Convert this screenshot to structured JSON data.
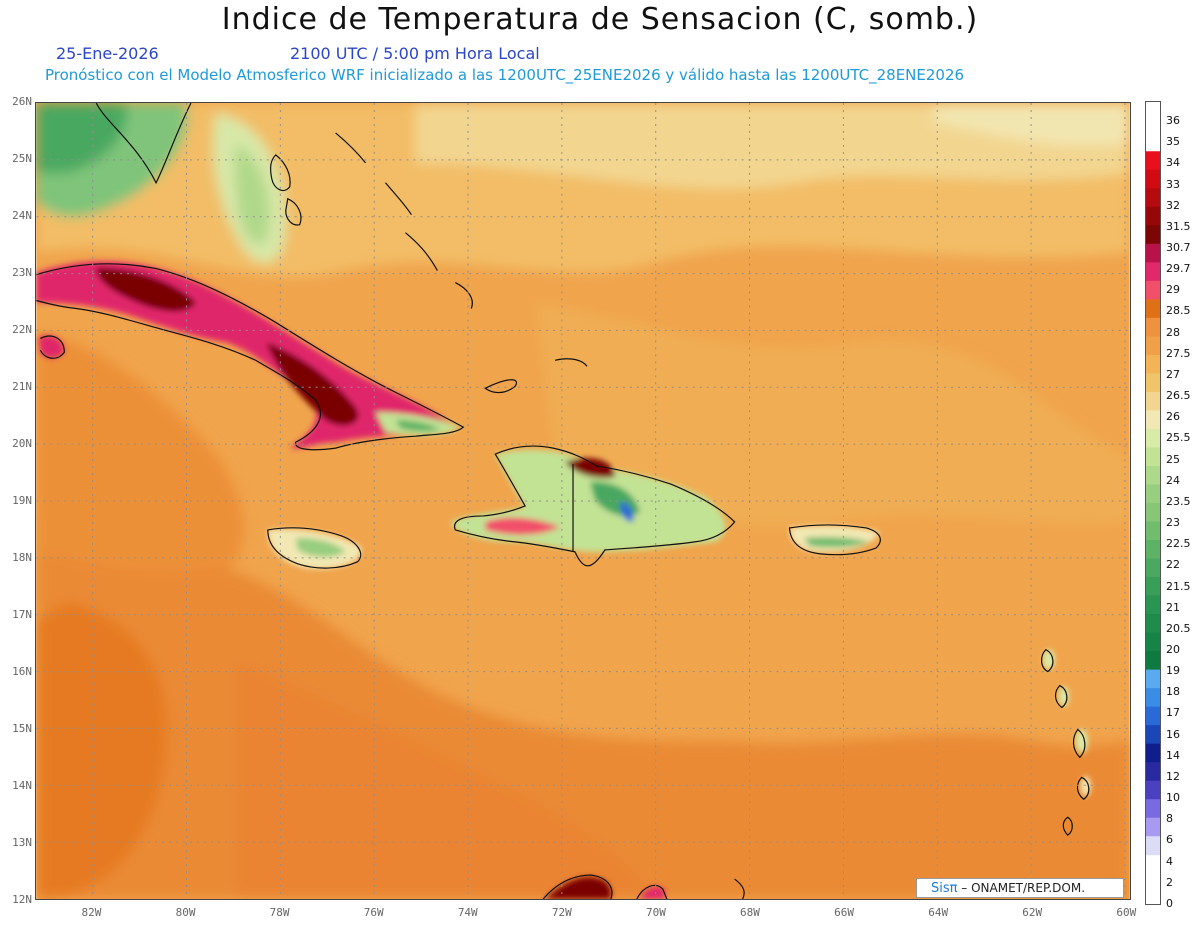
{
  "header": {
    "title": "Indice de Temperatura de Sensacion (C, somb.)",
    "date": "25-Ene-2026",
    "time": "2100 UTC / 5:00 pm Hora Local",
    "model_info": "Pronóstico con el Modelo Atmosferico WRF inicializado a las 1200UTC_25ENE2026 y válido hasta las  1200UTC_28ENE2026"
  },
  "map": {
    "lat_labels": [
      "26N",
      "25N",
      "24N",
      "23N",
      "22N",
      "21N",
      "20N",
      "19N",
      "18N",
      "17N",
      "16N",
      "15N",
      "14N",
      "13N",
      "12N"
    ],
    "lon_labels": [
      "82W",
      "80W",
      "78W",
      "76W",
      "74W",
      "72W",
      "70W",
      "68W",
      "66W",
      "64W",
      "62W",
      "60W"
    ],
    "lat_range": [
      12,
      26
    ],
    "lon_range": [
      -83.2,
      -59.9
    ],
    "grid": true
  },
  "legend": {
    "labels": [
      "36",
      "35",
      "34",
      "33",
      "32",
      "31.5",
      "30.7",
      "29.7",
      "29",
      "28.5",
      "28",
      "27.5",
      "27",
      "26.5",
      "26",
      "25.5",
      "25",
      "24",
      "23.5",
      "23",
      "22.5",
      "22",
      "21.5",
      "21",
      "20.5",
      "20",
      "19",
      "18",
      "17",
      "16",
      "14",
      "12",
      "10",
      "8",
      "6",
      "4",
      "2",
      "0"
    ],
    "colors": [
      "#e8101c",
      "#d10a14",
      "#b50a10",
      "#960808",
      "#7a0606",
      "#b8124a",
      "#e0286a",
      "#f2506a",
      "#e07018",
      "#ee9240",
      "#f0a048",
      "#f2b456",
      "#f0c46a",
      "#f2d690",
      "#f2e8b4",
      "#d9eba8",
      "#c2e294",
      "#aed88a",
      "#98ce80",
      "#86c676",
      "#72bc6e",
      "#5eb266",
      "#4aa860",
      "#389e58",
      "#2a9452",
      "#1f8c4c",
      "#168446",
      "#0e7a40",
      "#5aaaf0",
      "#3b8ce4",
      "#2a6ad6",
      "#1a46b8",
      "#101e8c",
      "#2a2aa0",
      "#4a40c0",
      "#7a6ae0",
      "#a89af0",
      "#dcdcf6"
    ]
  },
  "credit": {
    "brand": "Sisπ",
    "text": "– ONAMET/REP.DOM."
  }
}
